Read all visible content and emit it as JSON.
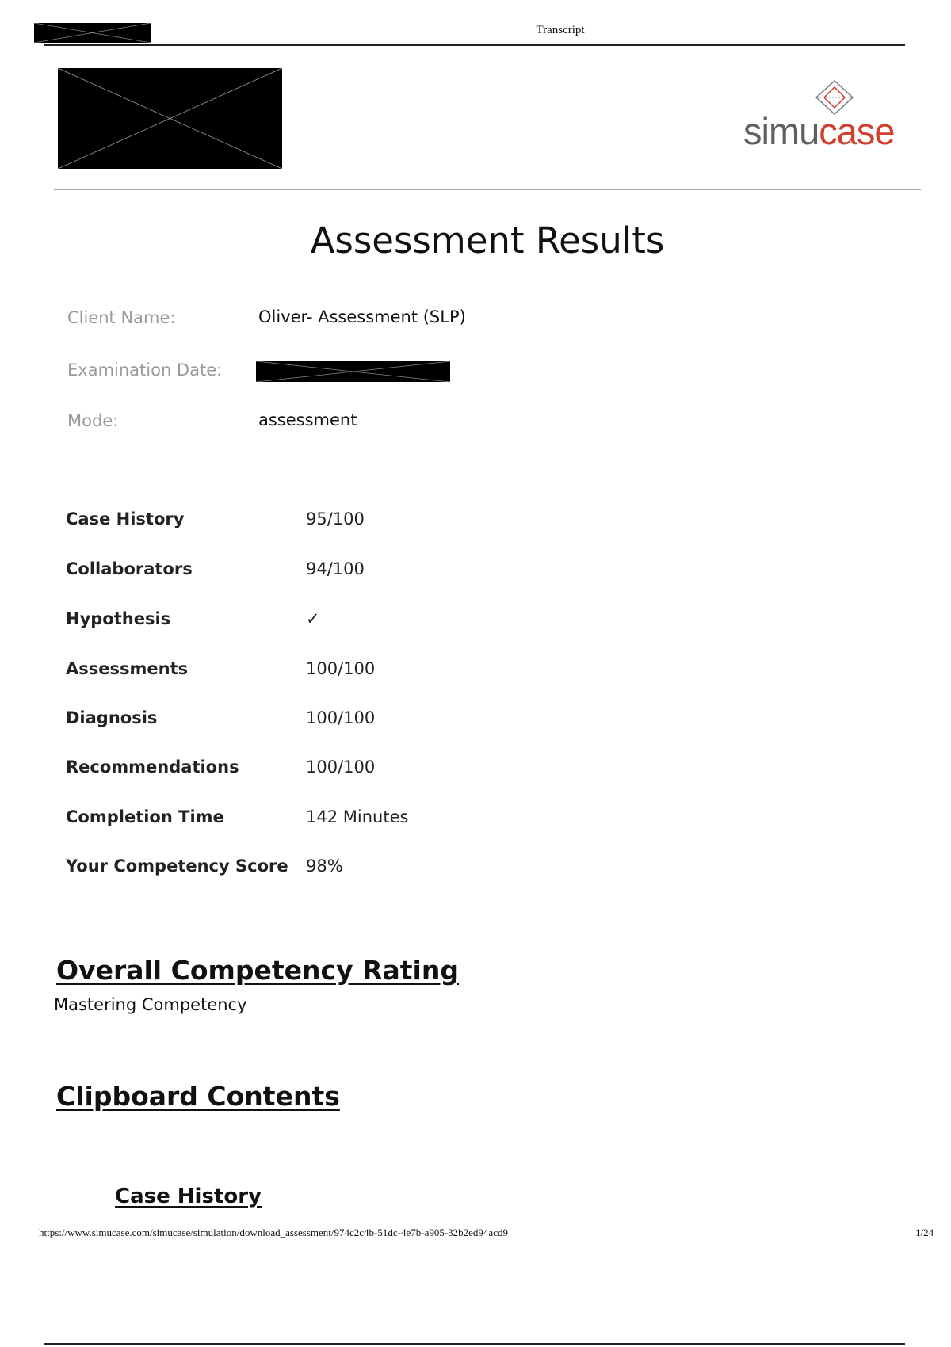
{
  "header": {
    "title": "Transcript"
  },
  "logo": {
    "text_gray": "simu",
    "text_red": "case",
    "gray": "#5f6062",
    "red": "#d0402f"
  },
  "page": {
    "title": "Assessment Results"
  },
  "info": [
    {
      "label": "Client Name:",
      "value": "Oliver- Assessment (SLP)"
    },
    {
      "label": "Examination Date:",
      "value": null
    },
    {
      "label": "Mode:",
      "value": "assessment"
    }
  ],
  "scores": [
    {
      "label": "Case History",
      "value": "95/100"
    },
    {
      "label": "Collaborators",
      "value": "94/100"
    },
    {
      "label": "Hypothesis",
      "value": "✓"
    },
    {
      "label": "Assessments",
      "value": "100/100"
    },
    {
      "label": "Diagnosis",
      "value": "100/100"
    },
    {
      "label": "Recommendations",
      "value": "100/100"
    },
    {
      "label": "Completion Time",
      "value": "142 Minutes"
    },
    {
      "label": "Your Competency Score",
      "value": "98%"
    }
  ],
  "rating": {
    "heading": "Overall Competency Rating",
    "value": "Mastering Competency"
  },
  "clipboard": {
    "heading": "Clipboard Contents",
    "subheading": "Case History"
  },
  "footer": {
    "url": "https://www.simucase.com/simucase/simulation/download_assessment/974c2c4b-51dc-4e7b-a905-32b2ed94acd9",
    "page": "1/24"
  }
}
